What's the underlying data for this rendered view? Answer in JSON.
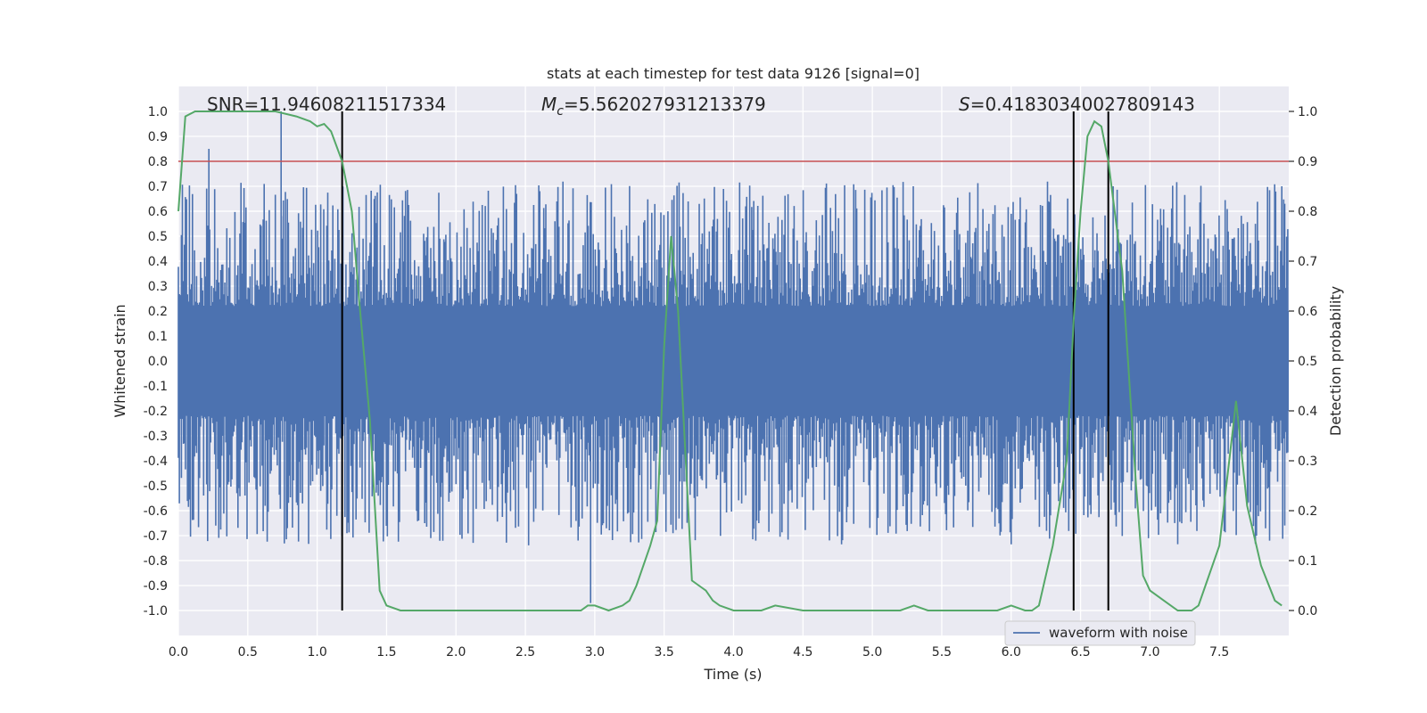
{
  "chart_data": {
    "type": "line",
    "title": "stats at each timestep for test data 9126 [signal=0]",
    "xlabel": "Time (s)",
    "ylabel_left": "Whitened strain",
    "ylabel_right": "Detection probability",
    "xlim": [
      0,
      8.0
    ],
    "ylim_left": [
      -1.05,
      1.08
    ],
    "ylim_right": [
      -0.05,
      1.03
    ],
    "x_ticks": [
      "0.0",
      "0.5",
      "1.0",
      "1.5",
      "2.0",
      "2.5",
      "3.0",
      "3.5",
      "4.0",
      "4.5",
      "5.0",
      "5.5",
      "6.0",
      "6.5",
      "7.0",
      "7.5"
    ],
    "y_ticks_left": [
      "1.0",
      "0.9",
      "0.8",
      "0.7",
      "0.6",
      "0.5",
      "0.4",
      "0.3",
      "0.2",
      "0.1",
      "0.0",
      "-0.1",
      "-0.2",
      "-0.3",
      "-0.4",
      "-0.5",
      "-0.6",
      "-0.7",
      "-0.8",
      "-0.9",
      "-1.0"
    ],
    "y_ticks_right": [
      "1.0",
      "0.9",
      "0.8",
      "0.7",
      "0.6",
      "0.5",
      "0.4",
      "0.3",
      "0.2",
      "0.1",
      "0.0"
    ],
    "annotations": {
      "snr": "SNR=11.94608211517334",
      "mc_symbol": "M",
      "mc_sub": "c",
      "mc_value": "=5.562027931213379",
      "s_symbol": "S",
      "s_value": "=0.41830340027809143"
    },
    "threshold_probability": 0.9,
    "event_lines_x": [
      1.18,
      6.45,
      6.7
    ],
    "grid": true,
    "legend": {
      "placement": "lower-right",
      "entries": [
        "waveform with noise"
      ]
    },
    "colors": {
      "waveform": "#4c72b0",
      "probability": "#55a868",
      "threshold": "#c44e52",
      "event_lines": "#000000",
      "axes_bg": "#eaeaf2",
      "grid": "#ffffff"
    },
    "series": [
      {
        "name": "waveform with noise",
        "summary": "noisy whitened strain, dense core about ±0.2, spikes mostly within ±0.7",
        "peaks": [
          [
            0.22,
            0.85
          ],
          [
            0.74,
            1.0
          ],
          [
            2.97,
            -0.97
          ],
          [
            6.7,
            0.86
          ],
          [
            7.95,
            0.7
          ]
        ]
      },
      {
        "name": "detection probability",
        "x": [
          0.0,
          0.05,
          0.12,
          0.3,
          0.5,
          0.7,
          0.85,
          0.95,
          1.0,
          1.05,
          1.1,
          1.18,
          1.25,
          1.3,
          1.38,
          1.45,
          1.5,
          1.6,
          1.8,
          2.0,
          2.4,
          2.6,
          2.8,
          2.9,
          2.95,
          3.0,
          3.1,
          3.2,
          3.25,
          3.3,
          3.4,
          3.45,
          3.5,
          3.55,
          3.6,
          3.7,
          3.75,
          3.8,
          3.85,
          3.9,
          4.0,
          4.2,
          4.3,
          4.5,
          5.0,
          5.2,
          5.3,
          5.4,
          5.5,
          5.7,
          5.9,
          6.0,
          6.1,
          6.15,
          6.2,
          6.3,
          6.4,
          6.45,
          6.5,
          6.55,
          6.6,
          6.65,
          6.7,
          6.8,
          6.9,
          6.95,
          7.0,
          7.1,
          7.2,
          7.3,
          7.35,
          7.4,
          7.5,
          7.6,
          7.62,
          7.7,
          7.8,
          7.9,
          7.95
        ],
        "values": [
          0.8,
          0.99,
          1.0,
          1.0,
          1.0,
          1.0,
          0.99,
          0.98,
          0.97,
          0.975,
          0.96,
          0.9,
          0.8,
          0.63,
          0.38,
          0.04,
          0.01,
          0.0,
          0.0,
          0.0,
          0.0,
          0.0,
          0.0,
          0.0,
          0.01,
          0.01,
          0.0,
          0.01,
          0.02,
          0.05,
          0.13,
          0.18,
          0.53,
          0.75,
          0.6,
          0.06,
          0.05,
          0.04,
          0.02,
          0.01,
          0.0,
          0.0,
          0.01,
          0.0,
          0.0,
          0.0,
          0.01,
          0.0,
          0.0,
          0.0,
          0.0,
          0.01,
          0.0,
          0.0,
          0.01,
          0.13,
          0.3,
          0.58,
          0.8,
          0.95,
          0.98,
          0.97,
          0.9,
          0.68,
          0.25,
          0.07,
          0.04,
          0.02,
          0.0,
          0.0,
          0.01,
          0.05,
          0.13,
          0.37,
          0.42,
          0.21,
          0.09,
          0.02,
          0.01
        ]
      }
    ]
  }
}
